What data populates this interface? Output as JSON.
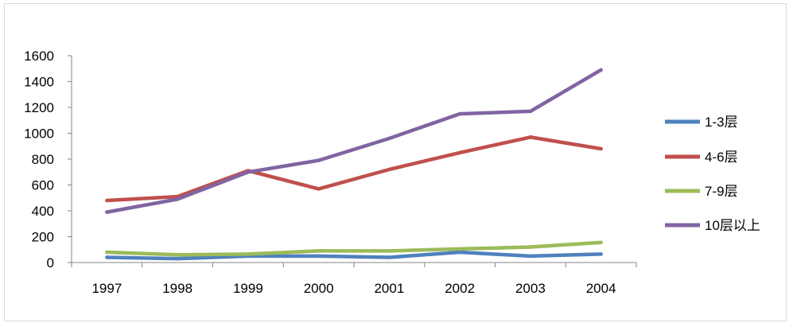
{
  "chart_data": {
    "type": "line",
    "categories": [
      "1997",
      "1998",
      "1999",
      "2000",
      "2001",
      "2002",
      "2003",
      "2004"
    ],
    "ylim": [
      0,
      1600
    ],
    "yticks": [
      "0",
      "200",
      "400",
      "600",
      "800",
      "1000",
      "1200",
      "1400",
      "1600"
    ],
    "grid": false,
    "legend_position": "right",
    "series": [
      {
        "name": "1-3层",
        "color": "#4f81bd",
        "values": [
          40,
          30,
          50,
          50,
          40,
          80,
          50,
          65
        ]
      },
      {
        "name": "4-6层",
        "color": "#c0504d",
        "values": [
          480,
          510,
          710,
          570,
          720,
          850,
          970,
          880
        ]
      },
      {
        "name": "7-9层",
        "color": "#9bbb59",
        "values": [
          80,
          60,
          65,
          90,
          90,
          105,
          120,
          155
        ]
      },
      {
        "name": "10层以上",
        "color": "#8064a2",
        "values": [
          390,
          490,
          700,
          790,
          960,
          1150,
          1170,
          1490
        ]
      }
    ]
  }
}
